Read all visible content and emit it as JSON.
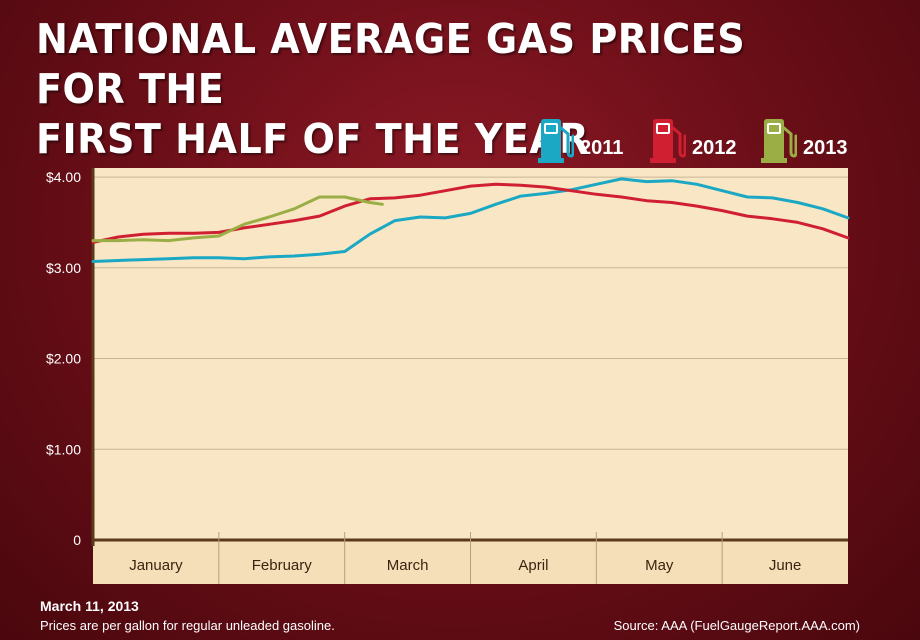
{
  "title_lines": [
    "NATIONAL AVERAGE GAS PRICES FOR THE",
    "FIRST HALF OF THE YEAR"
  ],
  "footer": {
    "date": "March 11, 2013",
    "note": "Prices are per gallon for regular unleaded gasoline.",
    "source": "Source: AAA (FuelGaugeReport.AAA.com)"
  },
  "legend_icon": "gas-pump-icon",
  "chart_data": {
    "type": "line",
    "title": "NATIONAL AVERAGE GAS PRICES FOR THE FIRST HALF OF THE YEAR",
    "xlabel": "",
    "ylabel": "",
    "x_range": [
      0,
      6
    ],
    "ylim": [
      0,
      4.1
    ],
    "y_ticks": [
      0,
      1,
      2,
      3,
      4
    ],
    "y_tick_labels": [
      "0",
      "$1.00",
      "$2.00",
      "$3.00",
      "$4.00"
    ],
    "categories": [
      "January",
      "February",
      "March",
      "April",
      "May",
      "June"
    ],
    "grid": "horizontal",
    "legend_position": "top-right",
    "colors": {
      "background": "#6e0f19",
      "plot": "#f9e6c4",
      "axis": "#5a3a1a",
      "grid": "#c8b594"
    },
    "series": [
      {
        "name": "2011",
        "color": "#1aa8c4",
        "x": [
          0,
          0.2,
          0.4,
          0.6,
          0.8,
          1.0,
          1.2,
          1.4,
          1.6,
          1.8,
          2.0,
          2.2,
          2.4,
          2.6,
          2.8,
          3.0,
          3.2,
          3.4,
          3.6,
          3.8,
          4.0,
          4.2,
          4.4,
          4.6,
          4.8,
          5.0,
          5.2,
          5.4,
          5.6,
          5.8,
          6.0
        ],
        "values": [
          3.07,
          3.08,
          3.09,
          3.1,
          3.11,
          3.11,
          3.1,
          3.12,
          3.13,
          3.15,
          3.18,
          3.37,
          3.52,
          3.56,
          3.55,
          3.6,
          3.7,
          3.79,
          3.82,
          3.86,
          3.92,
          3.98,
          3.95,
          3.96,
          3.92,
          3.85,
          3.78,
          3.77,
          3.72,
          3.65,
          3.55
        ]
      },
      {
        "name": "2012",
        "color": "#d01f30",
        "x": [
          0,
          0.2,
          0.4,
          0.6,
          0.8,
          1.0,
          1.2,
          1.4,
          1.6,
          1.8,
          2.0,
          2.2,
          2.4,
          2.6,
          2.8,
          3.0,
          3.2,
          3.4,
          3.6,
          3.8,
          4.0,
          4.2,
          4.4,
          4.6,
          4.8,
          5.0,
          5.2,
          5.4,
          5.6,
          5.8,
          6.0
        ],
        "values": [
          3.28,
          3.34,
          3.37,
          3.38,
          3.38,
          3.39,
          3.44,
          3.48,
          3.52,
          3.57,
          3.68,
          3.76,
          3.77,
          3.8,
          3.85,
          3.9,
          3.92,
          3.91,
          3.89,
          3.85,
          3.81,
          3.78,
          3.74,
          3.72,
          3.68,
          3.63,
          3.57,
          3.54,
          3.5,
          3.43,
          3.33
        ]
      },
      {
        "name": "2013",
        "color": "#9aae45",
        "x": [
          0,
          0.2,
          0.4,
          0.6,
          0.8,
          1.0,
          1.2,
          1.4,
          1.6,
          1.8,
          2.0,
          2.2,
          2.3
        ],
        "values": [
          3.3,
          3.3,
          3.31,
          3.3,
          3.33,
          3.35,
          3.48,
          3.56,
          3.65,
          3.78,
          3.78,
          3.72,
          3.7
        ]
      }
    ]
  }
}
